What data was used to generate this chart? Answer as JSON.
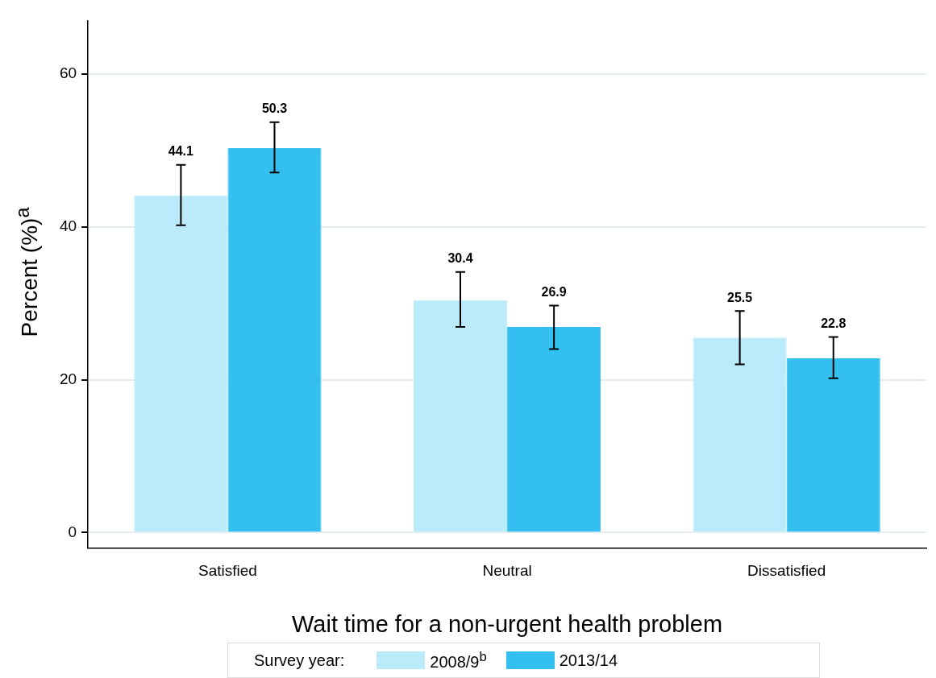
{
  "chart_data": {
    "type": "bar",
    "xlabel": "Wait time for a non-urgent health problem",
    "ylabel": "Percent (%)$^{a}$",
    "legend_title": "Survey year:",
    "categories": [
      "Satisfied",
      "Neutral",
      "Dissatisfied"
    ],
    "series": [
      {
        "name": "2008/9$^{b}$",
        "color": "#bbebfb",
        "values": [
          44.1,
          30.4,
          25.5
        ],
        "errors": [
          [
            40.2,
            48.1
          ],
          [
            26.9,
            34.1
          ],
          [
            22.0,
            29.0
          ]
        ]
      },
      {
        "name": "2013/14",
        "color": "#33bff0",
        "values": [
          50.3,
          26.9,
          22.8
        ],
        "errors": [
          [
            47.1,
            53.7
          ],
          [
            24.0,
            29.7
          ],
          [
            20.2,
            25.6
          ]
        ]
      }
    ],
    "ylim": [
      -2,
      67
    ],
    "yticks": [
      0,
      20,
      40,
      60
    ],
    "grid": "y",
    "legend": "bottom",
    "data_labels": true
  }
}
